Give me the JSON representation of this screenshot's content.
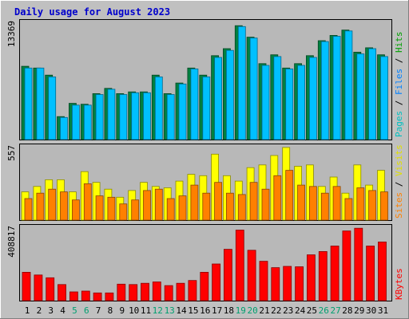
{
  "chart_data": {
    "type": "bar",
    "title": "Daily usage for August 2023",
    "categories": [
      "1",
      "2",
      "3",
      "4",
      "5",
      "6",
      "7",
      "8",
      "9",
      "10",
      "11",
      "12",
      "13",
      "14",
      "15",
      "16",
      "17",
      "18",
      "19",
      "20",
      "21",
      "22",
      "23",
      "24",
      "25",
      "26",
      "27",
      "28",
      "29",
      "30",
      "31"
    ],
    "weekend_days": [
      "5",
      "6",
      "12",
      "13",
      "19",
      "20",
      "26",
      "27"
    ],
    "panels": [
      {
        "id": "hits-files-pages",
        "max_label": "13369",
        "ylim": [
          0,
          13369
        ],
        "series": [
          {
            "name": "Hits",
            "color": "#008040",
            "values": [
              8300,
              8100,
              7300,
              2600,
              4100,
              4000,
              5200,
              5800,
              5200,
              5400,
              5400,
              7300,
              5200,
              6400,
              8100,
              7300,
              9500,
              10300,
              12900,
              11600,
              8600,
              9600,
              8100,
              8600,
              9500,
              11200,
              11800,
              12400,
              9900,
              10400,
              9600
            ]
          },
          {
            "name": "Files",
            "color": "#00c0ff",
            "values": [
              8100,
              8100,
              7100,
              2500,
              3900,
              3900,
              5100,
              5700,
              5100,
              5300,
              5300,
              7100,
              5100,
              6300,
              8000,
              7100,
              9300,
              10100,
              12800,
              11500,
              8400,
              9400,
              8000,
              8400,
              9300,
              11100,
              11700,
              12300,
              9700,
              10300,
              9400
            ]
          }
        ]
      },
      {
        "id": "visits-sites",
        "max_label": "557",
        "ylim": [
          0,
          557
        ],
        "series": [
          {
            "name": "Visits",
            "color": "#ffff00",
            "values": [
              210,
              250,
              300,
              300,
              210,
              360,
              280,
              230,
              170,
              220,
              280,
              250,
              240,
              290,
              340,
              330,
              490,
              330,
              290,
              390,
              410,
              480,
              540,
              400,
              410,
              250,
              320,
              200,
              410,
              260,
              370
            ]
          },
          {
            "name": "Sites",
            "color": "#ff8000",
            "values": [
              160,
              200,
              230,
              210,
              150,
              270,
              180,
              170,
              120,
              150,
              220,
              230,
              160,
              180,
              260,
              200,
              280,
              200,
              190,
              280,
              230,
              330,
              370,
              260,
              250,
              200,
              250,
              160,
              240,
              220,
              210
            ]
          }
        ]
      },
      {
        "id": "kbytes",
        "max_label": "408817",
        "ylim": [
          0,
          408817
        ],
        "series": [
          {
            "name": "KBytes",
            "color": "#ff0000",
            "values": [
              155000,
              140000,
              125000,
              88000,
              48000,
              52000,
              42000,
              42000,
              90000,
              88000,
              95000,
              102000,
              82000,
              95000,
              110000,
              155000,
              200000,
              280000,
              385000,
              275000,
              215000,
              180000,
              187000,
              185000,
              250000,
              268000,
              298000,
              380000,
              395000,
              298000,
              320000
            ]
          }
        ]
      }
    ],
    "labels": {
      "pages": "Pages",
      "files": "Files",
      "hits": "Hits",
      "sites": "Sites",
      "visits": "Visits",
      "kbytes": "KBytes",
      "sep": " / "
    }
  },
  "colors": {
    "background": "#c0c0c0",
    "plot_bg": "#b8b8b8",
    "pages_label": "#00c0c0",
    "files_label": "#0080ff",
    "hits_label": "#00a000",
    "sites_label": "#ff8000",
    "visits_label": "#e0e000",
    "kbytes_label": "#ff0000",
    "weekend": "#00a070",
    "weekday": "#000000"
  }
}
